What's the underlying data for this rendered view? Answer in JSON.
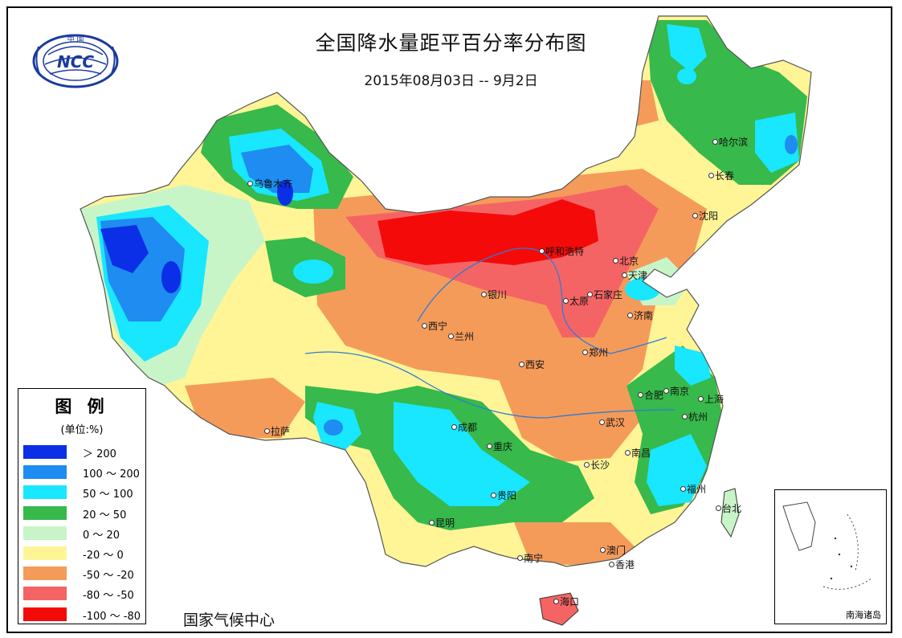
{
  "title": "全国降水量距平百分率分布图",
  "subtitle": "2015年08月03日 -- 9月2日",
  "footer": "国家气候中心",
  "logo": {
    "text": "NCC",
    "top_text": "中 国"
  },
  "legend": {
    "title": "图 例",
    "unit": "(单位:%)",
    "items": [
      {
        "label": "＞ 200",
        "color": "#0a2fe6"
      },
      {
        "label": "100 ～ 200",
        "color": "#1e8cf0"
      },
      {
        "label": "50 ～ 100",
        "color": "#19e6ff"
      },
      {
        "label": "20 ～ 50",
        "color": "#37b94b"
      },
      {
        "label": "0 ～ 20",
        "color": "#c8f5c8"
      },
      {
        "label": "-20 ～ 0",
        "color": "#fff596"
      },
      {
        "label": "-50 ～ -20",
        "color": "#f59b5a"
      },
      {
        "label": "-80 ～ -50",
        "color": "#f56464"
      },
      {
        "label": "-100 ～ -80",
        "color": "#f50a0a"
      }
    ]
  },
  "cities": [
    {
      "name": "乌鲁木齐",
      "id": "urumqi"
    },
    {
      "name": "哈尔滨",
      "id": "harbin"
    },
    {
      "name": "长春",
      "id": "changchun"
    },
    {
      "name": "沈阳",
      "id": "shenyang"
    },
    {
      "name": "呼和浩特",
      "id": "hohhot"
    },
    {
      "name": "北京",
      "id": "beijing"
    },
    {
      "name": "天津",
      "id": "tianjin"
    },
    {
      "name": "石家庄",
      "id": "shijiazhuang"
    },
    {
      "name": "太原",
      "id": "taiyuan"
    },
    {
      "name": "银川",
      "id": "yinchuan"
    },
    {
      "name": "济南",
      "id": "jinan"
    },
    {
      "name": "西宁",
      "id": "xining"
    },
    {
      "name": "兰州",
      "id": "lanzhou"
    },
    {
      "name": "郑州",
      "id": "zhengzhou"
    },
    {
      "name": "西安",
      "id": "xian"
    },
    {
      "name": "合肥",
      "id": "hefei"
    },
    {
      "name": "南京",
      "id": "nanjing"
    },
    {
      "name": "上海",
      "id": "shanghai"
    },
    {
      "name": "拉萨",
      "id": "lhasa"
    },
    {
      "name": "成都",
      "id": "chengdu"
    },
    {
      "name": "武汉",
      "id": "wuhan"
    },
    {
      "name": "杭州",
      "id": "hangzhou"
    },
    {
      "name": "重庆",
      "id": "chongqing"
    },
    {
      "name": "长沙",
      "id": "changsha"
    },
    {
      "name": "南昌",
      "id": "nanchang"
    },
    {
      "name": "贵阳",
      "id": "guiyang"
    },
    {
      "name": "福州",
      "id": "fuzhou"
    },
    {
      "name": "台北",
      "id": "taipei"
    },
    {
      "name": "昆明",
      "id": "kunming"
    },
    {
      "name": "南宁",
      "id": "nanning"
    },
    {
      "name": "澳门",
      "id": "macau"
    },
    {
      "name": "香港",
      "id": "hongkong"
    },
    {
      "name": "海口",
      "id": "haikou"
    }
  ],
  "inset": {
    "label": "南海诸岛"
  }
}
